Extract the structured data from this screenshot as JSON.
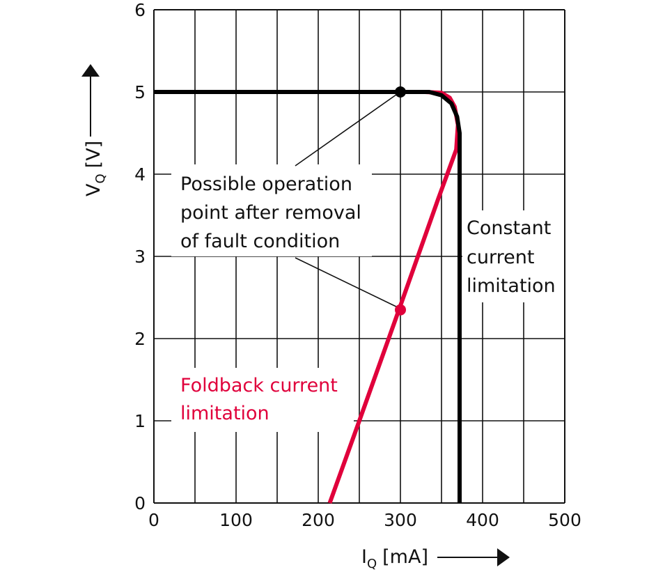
{
  "chart_data": {
    "type": "line",
    "xlim": [
      0,
      500
    ],
    "ylim": [
      0,
      6
    ],
    "x_ticks": [
      0,
      100,
      200,
      300,
      400,
      500
    ],
    "y_ticks": [
      0,
      1,
      2,
      3,
      4,
      5,
      6
    ],
    "x_grid_step": 50,
    "y_grid_step": 1,
    "grid": true,
    "xlabel": {
      "symbol": "I",
      "subscript": "Q",
      "unit": "[mA]"
    },
    "ylabel": {
      "symbol": "V",
      "subscript": "Q",
      "unit": "[V]"
    },
    "series": [
      {
        "color": "#e0003b",
        "points": [
          [
            214,
            0
          ],
          [
            250,
            1
          ],
          [
            300,
            2.4
          ],
          [
            346,
            3.7
          ],
          [
            368,
            4.3
          ],
          [
            370,
            4.6
          ],
          [
            366,
            4.82
          ],
          [
            360,
            4.93
          ],
          [
            350,
            4.99
          ],
          [
            330,
            5.0
          ],
          [
            0,
            5.0
          ]
        ]
      },
      {
        "color": "#000000",
        "points": [
          [
            372,
            0
          ],
          [
            372,
            4.5
          ],
          [
            369,
            4.7
          ],
          [
            362,
            4.86
          ],
          [
            350,
            4.96
          ],
          [
            335,
            5.0
          ],
          [
            0,
            5.0
          ]
        ]
      }
    ],
    "markers": [
      {
        "x": 300,
        "y": 5.0,
        "color": "#000000"
      },
      {
        "x": 300,
        "y": 2.35,
        "color": "#e0003b"
      }
    ],
    "annotations": {
      "operation_point": {
        "lines": [
          "Possible operation",
          "point after removal",
          "of fault condition"
        ],
        "color": "#111111"
      },
      "constant": {
        "lines": [
          "Constant",
          "current",
          "limitation"
        ],
        "color": "#111111"
      },
      "foldback": {
        "lines": [
          "Foldback current",
          "limitation"
        ],
        "color": "#e0003b"
      }
    }
  }
}
